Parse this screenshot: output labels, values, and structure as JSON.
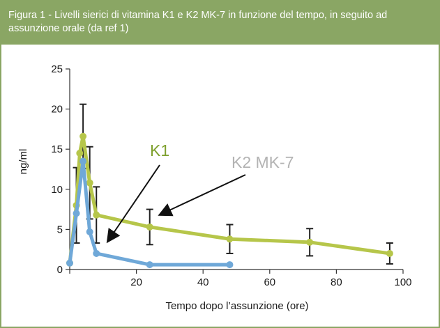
{
  "header": {
    "title": "Figura 1 - Livelli sierici di vitamina K1 e K2 MK-7 in funzione del tempo, in seguito ad assunzione orale (da ref 1)"
  },
  "colors": {
    "header_bg": "#8aa664",
    "k1": "#6fa8d8",
    "k2": "#b6c64a",
    "axis": "#333333",
    "label_k1": "#7ea02e",
    "label_k2": "#b3b3b3"
  },
  "chart_data": {
    "type": "line",
    "title": "",
    "xlabel": "Tempo dopo l’assunzione (ore)",
    "ylabel": "ng/ml",
    "xlim": [
      0,
      100
    ],
    "ylim": [
      0,
      25
    ],
    "xticks": [
      0,
      20,
      40,
      60,
      80,
      100
    ],
    "yticks": [
      0,
      5,
      10,
      15,
      20,
      25
    ],
    "grid": false,
    "series": [
      {
        "name": "K1",
        "color": "#6fa8d8",
        "x": [
          0,
          2,
          4,
          6,
          8,
          24,
          48
        ],
        "y": [
          0.8,
          7.0,
          13.5,
          4.7,
          2.0,
          0.6,
          0.6
        ]
      },
      {
        "name": "K2 MK-7",
        "color": "#b6c64a",
        "x": [
          0,
          2,
          3,
          4,
          6,
          8,
          24,
          48,
          72,
          96
        ],
        "y": [
          0.8,
          8.0,
          14.5,
          16.6,
          10.8,
          6.8,
          5.3,
          3.8,
          3.4,
          2.0
        ],
        "error": [
          0,
          4.7,
          0,
          4.0,
          4.5,
          3.5,
          2.2,
          1.8,
          1.7,
          1.3
        ]
      }
    ],
    "annotations": [
      {
        "text": "K1",
        "color": "#7ea02e"
      },
      {
        "text": "K2 MK-7",
        "color": "#b3b3b3"
      }
    ]
  }
}
